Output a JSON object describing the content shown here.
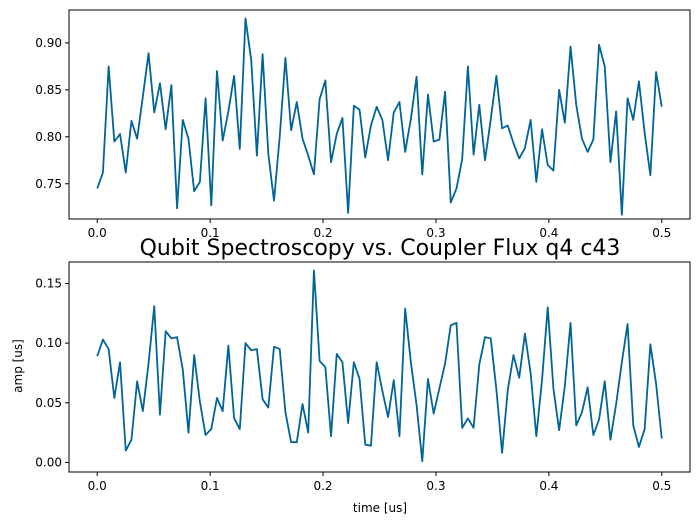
{
  "chart_data": [
    {
      "type": "line",
      "title": "",
      "xlabel": "",
      "ylabel": "",
      "xlim": [
        -0.025,
        0.525
      ],
      "ylim": [
        0.7125,
        0.935
      ],
      "xticks": [
        0.0,
        0.1,
        0.2,
        0.3,
        0.4,
        0.5
      ],
      "xtick_labels": [
        "0.0",
        "0.1",
        "0.2",
        "0.3",
        "0.4",
        "0.5"
      ],
      "yticks": [
        0.75,
        0.8,
        0.85,
        0.9
      ],
      "ytick_labels": [
        "0.75",
        "0.80",
        "0.85",
        "0.90"
      ],
      "grid": false,
      "color": "#006496",
      "x_start": 0.0,
      "x_end": 0.5,
      "series": [
        {
          "values": [
            0.745,
            0.762,
            0.875,
            0.795,
            0.803,
            0.762,
            0.817,
            0.798,
            0.843,
            0.889,
            0.826,
            0.857,
            0.808,
            0.855,
            0.724,
            0.818,
            0.798,
            0.742,
            0.752,
            0.841,
            0.727,
            0.87,
            0.796,
            0.827,
            0.865,
            0.787,
            0.926,
            0.882,
            0.78,
            0.888,
            0.782,
            0.732,
            0.8,
            0.884,
            0.807,
            0.837,
            0.798,
            0.78,
            0.76,
            0.84,
            0.86,
            0.773,
            0.803,
            0.82,
            0.719,
            0.833,
            0.829,
            0.778,
            0.812,
            0.832,
            0.818,
            0.775,
            0.826,
            0.837,
            0.784,
            0.819,
            0.864,
            0.76,
            0.845,
            0.795,
            0.797,
            0.848,
            0.73,
            0.745,
            0.776,
            0.875,
            0.781,
            0.834,
            0.775,
            0.818,
            0.865,
            0.809,
            0.812,
            0.793,
            0.777,
            0.788,
            0.818,
            0.752,
            0.808,
            0.77,
            0.764,
            0.85,
            0.815,
            0.896,
            0.834,
            0.798,
            0.784,
            0.797,
            0.898,
            0.875,
            0.773,
            0.827,
            0.717,
            0.841,
            0.818,
            0.859,
            0.804,
            0.759,
            0.869,
            0.832
          ]
        }
      ]
    },
    {
      "type": "line",
      "title": "Qubit Spectroscopy vs. Coupler Flux q4 c43",
      "xlabel": "time [us]",
      "ylabel": "amp [us]",
      "xlim": [
        -0.025,
        0.525
      ],
      "ylim": [
        -0.008,
        0.168
      ],
      "xticks": [
        0.0,
        0.1,
        0.2,
        0.3,
        0.4,
        0.5
      ],
      "xtick_labels": [
        "0.0",
        "0.1",
        "0.2",
        "0.3",
        "0.4",
        "0.5"
      ],
      "yticks": [
        0.0,
        0.05,
        0.1,
        0.15
      ],
      "ytick_labels": [
        "0.00",
        "0.05",
        "0.10",
        "0.15"
      ],
      "grid": false,
      "color": "#006496",
      "x_start": 0.0,
      "x_end": 0.5,
      "series": [
        {
          "values": [
            0.089,
            0.103,
            0.095,
            0.054,
            0.084,
            0.01,
            0.019,
            0.068,
            0.043,
            0.083,
            0.131,
            0.04,
            0.11,
            0.104,
            0.105,
            0.078,
            0.025,
            0.09,
            0.051,
            0.023,
            0.028,
            0.054,
            0.043,
            0.098,
            0.037,
            0.028,
            0.1,
            0.094,
            0.095,
            0.053,
            0.046,
            0.097,
            0.095,
            0.042,
            0.017,
            0.017,
            0.049,
            0.025,
            0.161,
            0.085,
            0.08,
            0.022,
            0.091,
            0.084,
            0.033,
            0.084,
            0.07,
            0.015,
            0.014,
            0.084,
            0.06,
            0.038,
            0.069,
            0.022,
            0.129,
            0.084,
            0.048,
            0.001,
            0.07,
            0.041,
            0.062,
            0.083,
            0.115,
            0.117,
            0.029,
            0.037,
            0.029,
            0.082,
            0.105,
            0.104,
            0.061,
            0.008,
            0.061,
            0.09,
            0.071,
            0.108,
            0.075,
            0.022,
            0.069,
            0.13,
            0.062,
            0.027,
            0.064,
            0.117,
            0.031,
            0.042,
            0.063,
            0.023,
            0.036,
            0.068,
            0.019,
            0.049,
            0.084,
            0.116,
            0.031,
            0.013,
            0.028,
            0.099,
            0.066,
            0.02
          ]
        }
      ]
    }
  ]
}
